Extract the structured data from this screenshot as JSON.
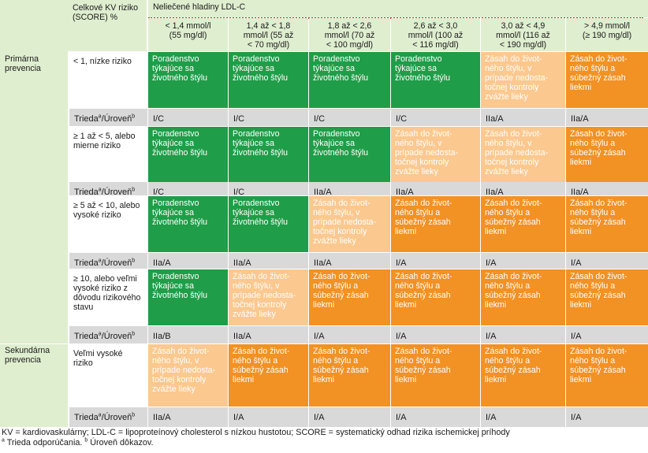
{
  "header": {
    "risk_col": "Celkové KV riziko\n(SCORE) %",
    "ldl_title": "Neliečené hladiny LDL-C",
    "ldl_levels": [
      "< 1,4 mmol/l\n(55 mg/dl)",
      "1,4 až < 1,8\nmmol/l (55 až\n< 70 mg/dl)",
      "1,8 až < 2,6\nmmol/l (70 až\n< 100 mg/dl)",
      "2,6 až < 3,0\nmmol/l (100 až\n< 116 mg/dl)",
      "3,0 až < 4,9\nmmol/l (116 až\n< 190 mg/dl)",
      "> 4,9 mmol/l\n(≥ 190 mg/dl)"
    ]
  },
  "groups": {
    "primary": "Primárna\nprevencia",
    "secondary": "Sekundárna\nprevencia"
  },
  "grade_label": {
    "base": "Trieda",
    "sup_a": "a",
    "sep": "/Úroveň",
    "sup_b": "b"
  },
  "rows": [
    {
      "risk": "< 1, nízke riziko",
      "cells": [
        {
          "text": "Poradenstvo\ntýkajúce sa\nživotného štýlu",
          "color": "dark-green"
        },
        {
          "text": "Poradenstvo\ntýkajúce sa\nživotného štýlu",
          "color": "dark-green"
        },
        {
          "text": "Poradenstvo\ntýkajúce sa\nživotného štýlu",
          "color": "dark-green"
        },
        {
          "text": "Poradenstvo\ntýkajúce sa\nživotného štýlu",
          "color": "dark-green"
        },
        {
          "text": "Zásah do život-\nného štýlu, v\nprípade nedosta-\ntočnej kontroly\nzvážte lieky",
          "color": "light-orange"
        },
        {
          "text": "Zásah do život-\nného štýlu a\nsúbežný zásah\nliekmi",
          "color": "dark-orange"
        }
      ],
      "grades": [
        "I/C",
        "I/C",
        "I/C",
        "I/C",
        "IIa/A",
        "IIa/A"
      ]
    },
    {
      "risk": "≥ 1 až < 5, alebo\nmierne riziko",
      "cells": [
        {
          "text": "Poradenstvo\ntýkajúce sa\nživotného štýlu",
          "color": "dark-green"
        },
        {
          "text": "Poradenstvo\ntýkajúce sa\nživotného štýlu",
          "color": "dark-green"
        },
        {
          "text": "Poradenstvo\ntýkajúce sa\nživotného štýlu",
          "color": "dark-green"
        },
        {
          "text": "Zásah do život-\nného štýlu, v\nprípade nedosta-\ntočnej kontroly\nzvážte lieky",
          "color": "light-orange"
        },
        {
          "text": "Zásah do život-\nného štýlu, v\nprípade nedosta-\ntočnej kontroly\nzvážte lieky",
          "color": "light-orange"
        },
        {
          "text": "Zásah do život-\nného štýlu a\nsúbežný zásah\nliekmi",
          "color": "dark-orange"
        }
      ],
      "grades": [
        "I/C",
        "I/C",
        "IIa/A",
        "IIa/A",
        "IIa/A",
        "IIa/A"
      ]
    },
    {
      "risk": "≥ 5 až < 10, alebo\nvysoké riziko",
      "cells": [
        {
          "text": "Poradenstvo\ntýkajúce sa\nživotného štýlu",
          "color": "dark-green"
        },
        {
          "text": "Poradenstvo\ntýkajúce sa\nživotného štýlu",
          "color": "dark-green"
        },
        {
          "text": "Zásah do život-\nného štýlu, v\nprípade nedosta-\ntočnej kontroly\nzvážte lieky",
          "color": "light-orange"
        },
        {
          "text": "Zásah do život-\nného štýlu a\nsúbežný zásah\nliekmi",
          "color": "dark-orange"
        },
        {
          "text": "Zásah do život-\nného štýlu a\nsúbežný zásah\nliekmi",
          "color": "dark-orange"
        },
        {
          "text": "Zásah do život-\nného štýlu a\nsúbežný zásah\nliekmi",
          "color": "dark-orange"
        }
      ],
      "grades": [
        "IIa/A",
        "IIa/A",
        "IIa/A",
        "I/A",
        "I/A",
        "I/A"
      ]
    },
    {
      "risk": "≥ 10, alebo veľmi\nvysoké riziko z\ndôvodu rizikového\nstavu",
      "cells": [
        {
          "text": "Poradenstvo\ntýkajúce sa\nživotného štýlu",
          "color": "dark-green"
        },
        {
          "text": "Zásah do život-\nného štýlu, v\nprípade nedosta-\ntočnej kontroly\nzvážte lieky",
          "color": "light-orange"
        },
        {
          "text": "Zásah do život-\nného štýlu a\nsúbežný zásah\nliekmi",
          "color": "dark-orange"
        },
        {
          "text": "Zásah do život-\nného štýlu a\nsúbežný zásah\nliekmi",
          "color": "dark-orange"
        },
        {
          "text": "Zásah do život-\nného štýlu a\nsúbežný zásah\nliekmi",
          "color": "dark-orange"
        },
        {
          "text": "Zásah do život-\nného štýlu a\nsúbežný zásah\nliekmi",
          "color": "dark-orange"
        }
      ],
      "grades": [
        "IIa/B",
        "IIa/A",
        "I/A",
        "I/A",
        "I/A",
        "I/A"
      ]
    },
    {
      "risk": "Veľmi vysoké\nriziko",
      "cells": [
        {
          "text": "Zásah do život-\nného štýlu, v\nprípade nedosta-\ntočnej kontroly\nzvážte lieky",
          "color": "light-orange"
        },
        {
          "text": "Zásah do život-\nného štýlu a\nsúbežný zásah\nliekmi",
          "color": "dark-orange"
        },
        {
          "text": "Zásah do život-\nného štýlu a\nsúbežný zásah\nliekmi",
          "color": "dark-orange"
        },
        {
          "text": "Zásah do život-\nného štýlu a\nsúbežný zásah\nliekmi",
          "color": "dark-orange"
        },
        {
          "text": "Zásah do život-\nného štýlu a\nsúbežný zásah\nliekmi",
          "color": "dark-orange"
        },
        {
          "text": "Zásah do život-\nného štýlu a\nsúbežný zásah\nliekmi",
          "color": "dark-orange"
        }
      ],
      "grades": [
        "IIa/A",
        "I/A",
        "I/A",
        "I/A",
        "I/A",
        "I/A"
      ]
    }
  ],
  "footer": {
    "line1": "KV = kardiovaskulárny; LDL-C = lipoproteínový cholesterol s nízkou hustotou; SCORE = systematický odhad rizika ischemickej príhody",
    "sup_a": "a",
    "note_a": " Trieda odporúčania. ",
    "sup_b": "b",
    "note_b": " Úroveň dôkazov."
  },
  "colors": {
    "dark-green": "#1f9d48",
    "light-orange": "#fbc88f",
    "dark-orange": "#f29124",
    "header-bg": "#dfeecf",
    "grade-row-bg": "#d9d9d9",
    "dotted-line": "#d0282e"
  }
}
